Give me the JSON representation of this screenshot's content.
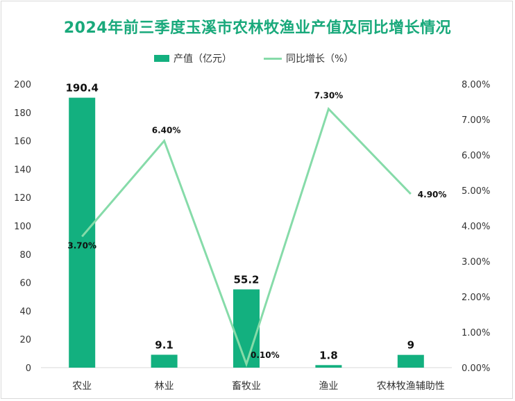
{
  "chart_data": {
    "type": "bar",
    "title": "2024年前三季度玉溪市农林牧渔业产值及同比增长情况",
    "categories": [
      "农业",
      "林业",
      "畜牧业",
      "渔业",
      "农林牧渔辅助性"
    ],
    "series": [
      {
        "name": "产值（亿元）",
        "type": "bar",
        "axis": "left",
        "color": "#13b07f",
        "values": [
          190.4,
          9.1,
          55.2,
          1.8,
          9
        ],
        "labels": [
          "190.4",
          "9.1",
          "55.2",
          "1.8",
          "9"
        ]
      },
      {
        "name": "同比增长（%）",
        "type": "line",
        "axis": "right",
        "color": "#86dba9",
        "values": [
          3.7,
          6.4,
          0.1,
          7.3,
          4.9
        ],
        "labels": [
          "3.70%",
          "6.40%",
          "0.10%",
          "7.30%",
          "4.90%"
        ]
      }
    ],
    "y_left": {
      "lim": [
        0,
        200
      ],
      "ticks": [
        "0",
        "20",
        "40",
        "60",
        "80",
        "100",
        "120",
        "140",
        "160",
        "180",
        "200"
      ]
    },
    "y_right": {
      "lim": [
        0,
        8
      ],
      "ticks": [
        "0.00%",
        "1.00%",
        "2.00%",
        "3.00%",
        "4.00%",
        "5.00%",
        "6.00%",
        "7.00%",
        "8.00%"
      ]
    },
    "legend_position": "top",
    "grid": false
  }
}
